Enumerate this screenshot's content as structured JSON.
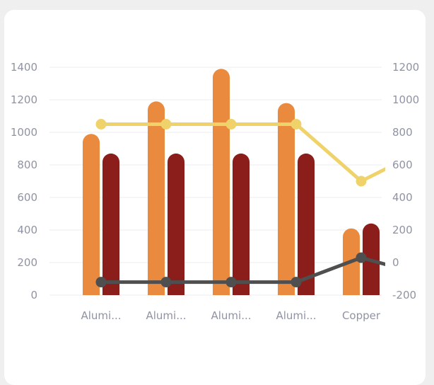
{
  "chart_data": {
    "type": "bar",
    "categories": [
      "Alumi...",
      "Alumi...",
      "Alumi...",
      "Alumi...",
      "Copper"
    ],
    "series": [
      {
        "kind": "bar",
        "axis": "left",
        "color": "#e98a3f",
        "values": [
          990,
          1190,
          1390,
          1180,
          410
        ]
      },
      {
        "kind": "bar",
        "axis": "left",
        "color": "#8b1e1a",
        "values": [
          870,
          870,
          870,
          870,
          440
        ]
      },
      {
        "kind": "line",
        "axis": "right",
        "color": "#efd36a",
        "values": [
          850,
          850,
          850,
          850,
          500
        ],
        "next": 700
      },
      {
        "kind": "line",
        "axis": "right",
        "color": "#4f4f4f",
        "values": [
          -120,
          -120,
          -120,
          -120,
          30
        ],
        "next": -80
      }
    ],
    "left_axis": {
      "ylim": [
        0,
        1400
      ],
      "ticks": [
        "0",
        "200",
        "400",
        "600",
        "800",
        "1000",
        "1200",
        "1400"
      ]
    },
    "right_axis": {
      "ylim": [
        -200,
        1200
      ],
      "ticks": [
        "-200",
        "0",
        "200",
        "400",
        "600",
        "800",
        "1000",
        "1200"
      ]
    },
    "grid": true
  }
}
